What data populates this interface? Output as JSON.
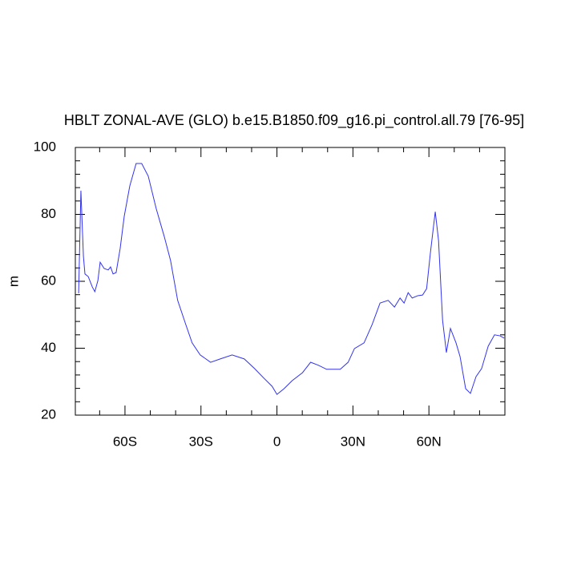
{
  "chart_data": {
    "type": "line",
    "title": "HBLT ZONAL-AVE (GLO) b.e15.B1850.f09_g16.pi_control.all.79 [76-95]",
    "y_label": "m",
    "xlim": [
      -79.6,
      90
    ],
    "ylim": [
      20,
      100
    ],
    "xticks": [
      {
        "value": -60,
        "label": "60S"
      },
      {
        "value": -30,
        "label": "30S"
      },
      0,
      {
        "value": 30,
        "label": "30N"
      },
      {
        "value": 60,
        "label": "60N"
      }
    ],
    "xminorticks": [
      -70,
      -50,
      -40,
      -20,
      -10,
      10,
      20,
      40,
      50,
      70,
      80,
      90
    ],
    "yticks": [
      20,
      40,
      60,
      80,
      100
    ],
    "yminorticks": [
      24,
      28,
      32,
      36,
      44,
      48,
      52,
      56,
      64,
      68,
      72,
      76,
      84,
      88,
      92,
      96
    ],
    "series": [
      {
        "color": "#3333ee",
        "x": [
          -78.3,
          -77.4,
          -76.4,
          -75.8,
          -74.5,
          -72.9,
          -71.9,
          -70.7,
          -69.8,
          -68.2,
          -66.6,
          -65.7,
          -64.7,
          -63.5,
          -61.9,
          -60.3,
          -58.1,
          -55.6,
          -53.4,
          -50.8,
          -47.7,
          -44.5,
          -42.0,
          -39.2,
          -36.0,
          -33.5,
          -30.3,
          -26.2,
          -22.4,
          -17.7,
          -12.9,
          -8.8,
          -5.1,
          -1.9,
          0,
          2.8,
          6.0,
          10.1,
          13.3,
          16.4,
          19.6,
          25.0,
          28.1,
          30.6,
          34.4,
          37.6,
          40.7,
          43.9,
          46.4,
          48.6,
          50.2,
          51.8,
          53.4,
          55.6,
          57.5,
          59.1,
          60.6,
          62.5,
          63.8,
          65.4,
          66.9,
          68.5,
          70.7,
          72.3,
          74.5,
          76.4,
          78.6,
          80.8,
          83.4,
          85.9,
          88.1,
          89.7
        ],
        "values": [
          56.4,
          87.1,
          67.4,
          62.2,
          61.4,
          58.3,
          56.9,
          60.2,
          65.7,
          63.8,
          63.4,
          64.3,
          62.2,
          62.6,
          69.8,
          79.4,
          88.5,
          95.2,
          95.2,
          91.4,
          81.8,
          73.4,
          66.2,
          54.3,
          47.1,
          41.6,
          38.0,
          35.8,
          36.8,
          38.0,
          36.8,
          33.9,
          31.0,
          28.6,
          26.2,
          27.9,
          30.3,
          32.7,
          35.8,
          34.9,
          33.7,
          33.7,
          35.8,
          39.9,
          41.6,
          47.1,
          53.5,
          54.3,
          52.3,
          55.0,
          53.5,
          56.6,
          55.0,
          55.7,
          55.9,
          57.8,
          68.6,
          80.8,
          72.2,
          48.3,
          38.7,
          45.9,
          41.6,
          37.5,
          27.9,
          26.5,
          31.5,
          33.9,
          40.6,
          44.0,
          43.7,
          43.0
        ]
      }
    ]
  }
}
